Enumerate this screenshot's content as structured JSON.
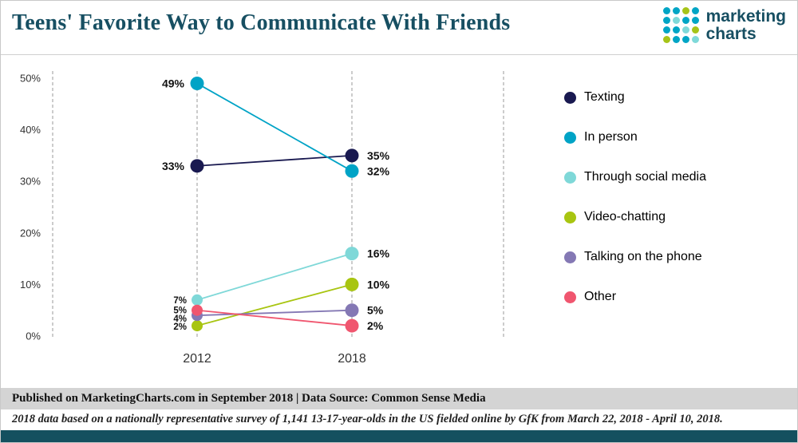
{
  "header": {
    "title": "Teens' Favorite Way to Communicate With Friends",
    "logo": {
      "line1": "marketing",
      "line2": "charts",
      "dot_colors": [
        "#00a5c5",
        "#00a5c5",
        "#a6c418",
        "#00a5c5",
        "#00a5c5",
        "#7fd9d9",
        "#00a5c5",
        "#00a5c5",
        "#00a5c5",
        "#00a5c5",
        "#7fd9d9",
        "#a6c418",
        "#a6c418",
        "#00a5c5",
        "#00a5c5",
        "#7fd9d9"
      ]
    }
  },
  "chart_data": {
    "type": "line",
    "title": "Teens' Favorite Way to Communicate With Friends",
    "x": [
      "2012",
      "2018"
    ],
    "series": [
      {
        "name": "Texting",
        "values": [
          33,
          35
        ],
        "labels": [
          "33%",
          "35%"
        ],
        "color": "#191950"
      },
      {
        "name": "In person",
        "values": [
          49,
          32
        ],
        "labels": [
          "49%",
          "32%"
        ],
        "color": "#00a3c6"
      },
      {
        "name": "Through social media",
        "values": [
          7,
          16
        ],
        "labels": [
          "7%",
          "16%"
        ],
        "color": "#7fd8d8"
      },
      {
        "name": "Video-chatting",
        "values": [
          2,
          10
        ],
        "labels": [
          "2%",
          "10%"
        ],
        "color": "#a8c511"
      },
      {
        "name": "Talking on the phone",
        "values": [
          4,
          5
        ],
        "labels": [
          "4%",
          "5%"
        ],
        "color": "#8478b4"
      },
      {
        "name": "Other",
        "values": [
          5,
          2
        ],
        "labels": [
          "5%",
          "2%"
        ],
        "color": "#f0566f"
      }
    ],
    "ylim": [
      0,
      50
    ],
    "yticks": [
      "0%",
      "10%",
      "20%",
      "30%",
      "40%",
      "50%"
    ],
    "grid": "vertical-dashed",
    "legend_position": "right"
  },
  "colors": {
    "brand_teal": "#174f62",
    "footer_bar": "#14505f",
    "published_bar_bg": "#d4d4d4"
  },
  "footer": {
    "published": "Published on MarketingCharts.com in September 2018 | Data Source: Common Sense Media",
    "note": "2018 data based on a nationally representative survey of 1,141 13-17-year-olds in the US fielded online by GfK from March 22, 2018 - April 10, 2018."
  }
}
